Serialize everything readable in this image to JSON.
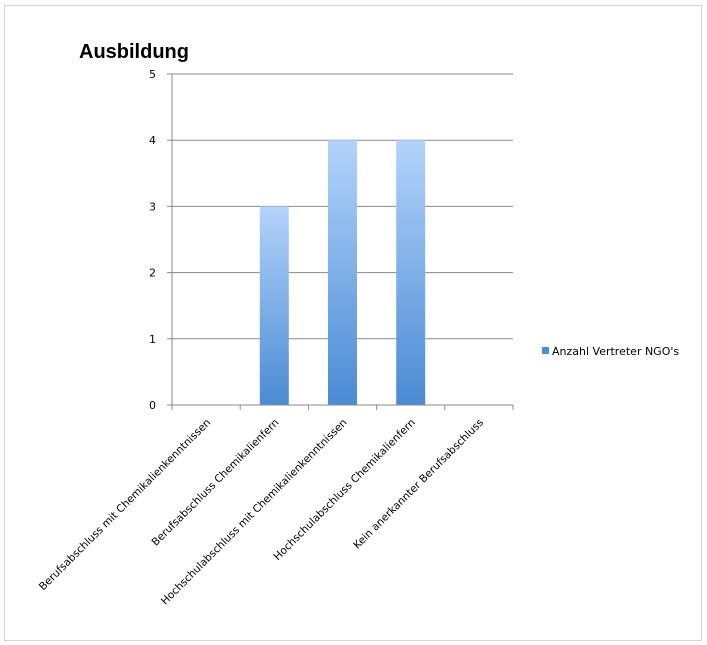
{
  "chart_data": {
    "type": "bar",
    "title": "Ausbildung",
    "categories": [
      "Berufsabschluss mit Chemikalienkenntnissen",
      "Berufsabschluss Chemikalienfern",
      "Hochschulabschluss mit Chemikalienkenntnissen",
      "Hochschulabschluss Chemikalienfern",
      "Kein anerkannter Berufsabschluss"
    ],
    "series": [
      {
        "name": "Anzahl Vertreter NGO's",
        "values": [
          0,
          3,
          4,
          4,
          0
        ],
        "color": "#4f8fd6"
      }
    ],
    "yticks": [
      0,
      1,
      2,
      3,
      4,
      5
    ],
    "ylim": [
      0,
      5
    ],
    "xlabel": "",
    "ylabel": "",
    "grid": true,
    "legend_position": "right"
  }
}
